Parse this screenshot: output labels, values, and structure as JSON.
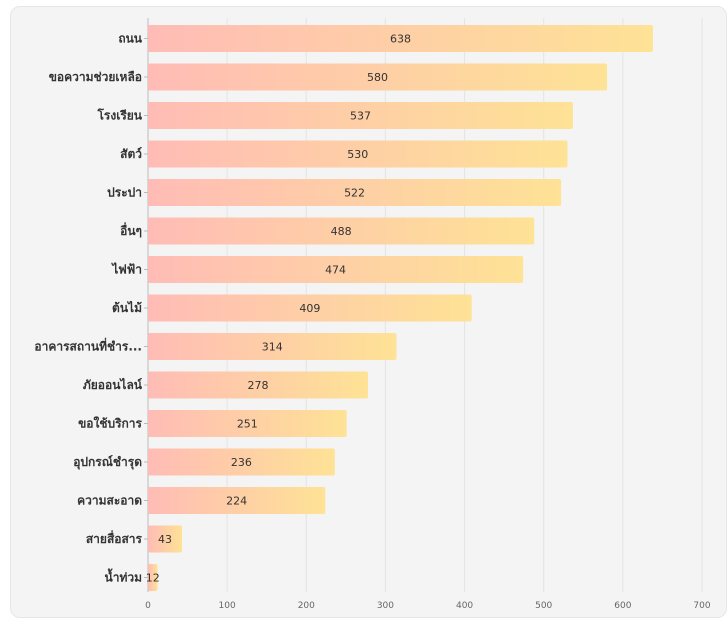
{
  "chart_data": {
    "type": "bar",
    "orientation": "horizontal",
    "categories": [
      "ถนน",
      "ขอความช่วยเหลือ",
      "โรงเรียน",
      "สัตว์",
      "ประปา",
      "อื่นๆ",
      "ไฟฟ้า",
      "ต้นไม้",
      "อาคารสถานที่ชำร...",
      "ภัยออนไลน์",
      "ขอใช้บริการ",
      "อุปกรณ์ชำรุด",
      "ความสะอาด",
      "สายสื่อสาร",
      "น้ำท่วม"
    ],
    "values": [
      638,
      580,
      537,
      530,
      522,
      488,
      474,
      409,
      314,
      278,
      251,
      236,
      224,
      43,
      12
    ],
    "xlim": [
      0,
      700
    ],
    "xticks": [
      0,
      100,
      200,
      300,
      400,
      500,
      600,
      700
    ],
    "grid": true,
    "legend": "none",
    "colors": {
      "bar_start": "#ffbcb6",
      "bar_end": "#fee295",
      "background": "#f4f4f4",
      "grid": "#e4e4e4",
      "axis": "#bbbbbb"
    }
  }
}
